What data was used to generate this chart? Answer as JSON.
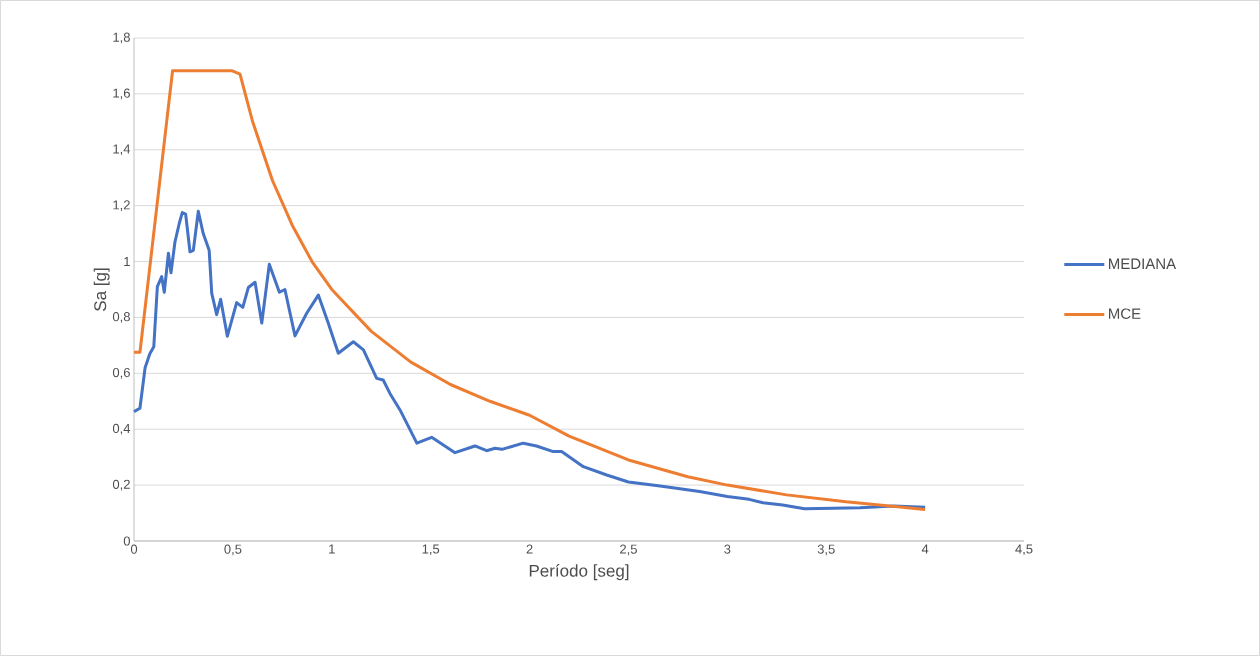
{
  "chart_data": {
    "type": "line",
    "xlabel": "Período [seg]",
    "ylabel": "Sa [g]",
    "xlim": [
      0,
      4.5
    ],
    "ylim": [
      0,
      1.8
    ],
    "xticks": [
      0,
      {
        "value": 0.5,
        "label": "0,5"
      },
      1,
      {
        "value": 1.5,
        "label": "1,5"
      },
      2,
      {
        "value": 2.5,
        "label": "2,5"
      },
      3,
      {
        "value": 3.5,
        "label": "3,5"
      },
      4,
      {
        "value": 4.5,
        "label": "4,5"
      }
    ],
    "yticks": [
      0,
      {
        "value": 0.2,
        "label": "0,2"
      },
      {
        "value": 0.4,
        "label": "0,4"
      },
      {
        "value": 0.6,
        "label": "0,6"
      },
      {
        "value": 0.8,
        "label": "0,8"
      },
      1,
      {
        "value": 1.2,
        "label": "1,2"
      },
      {
        "value": 1.4,
        "label": "1,4"
      },
      {
        "value": 1.6,
        "label": "1,6"
      },
      {
        "value": 1.8,
        "label": "1,8"
      }
    ],
    "grid": "y",
    "legend": "right",
    "series": [
      {
        "name": "MEDIANA",
        "color": "#4472c4",
        "x": [
          0,
          0.03,
          0.056,
          0.08,
          0.1,
          0.118,
          0.14,
          0.153,
          0.174,
          0.187,
          0.207,
          0.229,
          0.244,
          0.261,
          0.283,
          0.3,
          0.325,
          0.35,
          0.38,
          0.393,
          0.418,
          0.438,
          0.472,
          0.519,
          0.55,
          0.578,
          0.612,
          0.646,
          0.684,
          0.735,
          0.763,
          0.814,
          0.873,
          0.932,
          0.982,
          1.033,
          1.109,
          1.16,
          1.227,
          1.26,
          1.294,
          1.345,
          1.43,
          1.505,
          1.623,
          1.724,
          1.783,
          1.825,
          1.86,
          1.968,
          2.035,
          2.12,
          2.162,
          2.272,
          2.39,
          2.5,
          2.66,
          2.86,
          3.0,
          3.11,
          3.18,
          3.28,
          3.39,
          3.535,
          3.67,
          3.84,
          4.0
        ],
        "values": [
          0.463,
          0.475,
          0.62,
          0.67,
          0.695,
          0.91,
          0.946,
          0.89,
          1.03,
          0.96,
          1.07,
          1.137,
          1.175,
          1.17,
          1.035,
          1.04,
          1.18,
          1.1,
          1.04,
          0.886,
          0.81,
          0.865,
          0.733,
          0.853,
          0.836,
          0.907,
          0.926,
          0.78,
          0.99,
          0.89,
          0.9,
          0.734,
          0.815,
          0.88,
          0.78,
          0.672,
          0.713,
          0.684,
          0.582,
          0.576,
          0.528,
          0.469,
          0.35,
          0.371,
          0.316,
          0.34,
          0.323,
          0.332,
          0.328,
          0.35,
          0.34,
          0.32,
          0.32,
          0.266,
          0.236,
          0.211,
          0.197,
          0.177,
          0.159,
          0.149,
          0.137,
          0.129,
          0.115,
          0.117,
          0.119,
          0.125,
          0.121
        ]
      },
      {
        "name": "MCE",
        "color": "#ed7d31",
        "x": [
          0,
          0.03,
          0.195,
          0.494,
          0.536,
          0.6,
          0.7,
          0.8,
          0.9,
          1.0,
          1.2,
          1.4,
          1.6,
          1.8,
          2.0,
          2.2,
          2.5,
          2.8,
          3.0,
          3.3,
          3.6,
          4.0
        ],
        "values": [
          0.675,
          0.675,
          1.683,
          1.683,
          1.671,
          1.5,
          1.29,
          1.13,
          1.0,
          0.9,
          0.75,
          0.64,
          0.56,
          0.5,
          0.45,
          0.375,
          0.29,
          0.23,
          0.2,
          0.165,
          0.14,
          0.113
        ]
      }
    ]
  }
}
